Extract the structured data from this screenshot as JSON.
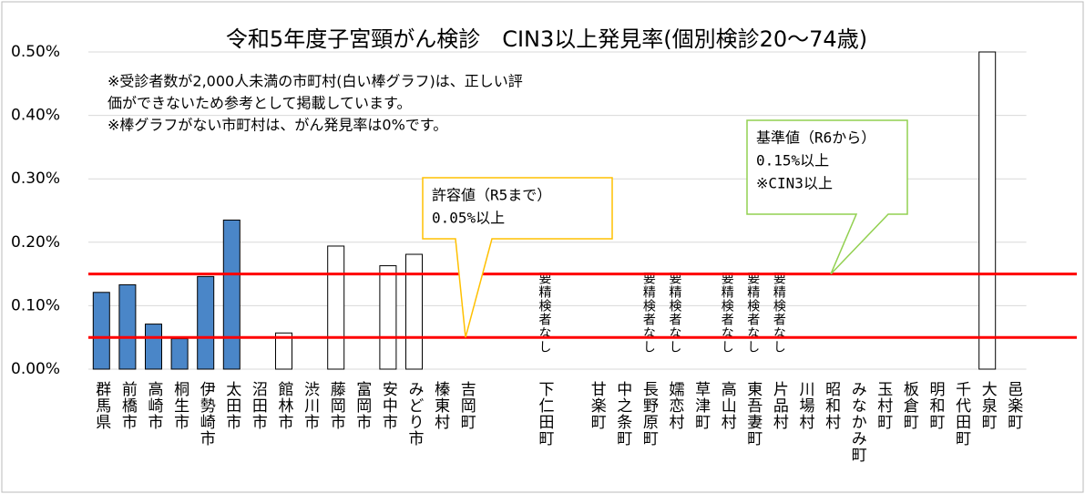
{
  "chart_data": {
    "type": "bar",
    "title": "令和5年度子宮頸がん検診　CIN3以上発見率(個別検診20～74歳)",
    "notes": [
      "※受診者数が2,000人未満の市町村(白い棒グラフ)は、正しい評",
      "価ができないため参考として掲載しています。",
      "※棒グラフがない市町村は、がん発見率は0%です。"
    ],
    "categories": [
      "群馬県",
      "前橋市",
      "高崎市",
      "桐生市",
      "伊勢崎市",
      "太田市",
      "沼田市",
      "館林市",
      "渋川市",
      "藤岡市",
      "富岡市",
      "安中市",
      "みどり市",
      "榛東村",
      "吉岡町",
      null,
      null,
      "下仁田町",
      null,
      "甘楽町",
      "中之条町",
      "長野原町",
      "嬬恋村",
      "草津町",
      "高山村",
      "東吾妻町",
      "片品村",
      "川場村",
      "昭和村",
      "みなかみ町",
      "玉村町",
      "板倉町",
      "明和町",
      "千代田町",
      "大泉町",
      "邑楽町"
    ],
    "values": [
      0.121,
      0.133,
      0.071,
      0.048,
      0.146,
      0.235,
      0,
      0.057,
      0,
      0.194,
      0,
      0.163,
      0.181,
      0,
      0,
      0,
      0,
      0,
      0,
      0,
      0,
      0,
      0,
      0,
      0,
      0,
      0,
      0,
      0,
      0,
      0,
      0,
      0,
      0,
      0.5,
      0
    ],
    "colors": [
      "#4a86c8",
      "#4a86c8",
      "#4a86c8",
      "#4a86c8",
      "#4a86c8",
      "#4a86c8",
      "#4a86c8",
      "#ffffff",
      "#4a86c8",
      "#ffffff",
      "#4a86c8",
      "#ffffff",
      "#ffffff",
      "#ffffff",
      "#ffffff",
      "#ffffff",
      "#ffffff",
      "#ffffff",
      "#ffffff",
      "#ffffff",
      "#ffffff",
      "#ffffff",
      "#ffffff",
      "#ffffff",
      "#ffffff",
      "#ffffff",
      "#ffffff",
      "#ffffff",
      "#ffffff",
      "#ffffff",
      "#ffffff",
      "#ffffff",
      "#ffffff",
      "#ffffff",
      "#ffffff",
      "#ffffff"
    ],
    "ylim": [
      0,
      0.5
    ],
    "yticks": [
      {
        "value": 0,
        "label": "0.00%"
      },
      {
        "value": 0.1,
        "label": "0.10%"
      },
      {
        "value": 0.2,
        "label": "0.20%"
      },
      {
        "value": 0.3,
        "label": "0.30%"
      },
      {
        "value": 0.4,
        "label": "0.40%"
      },
      {
        "value": 0.5,
        "label": "0.50%"
      }
    ],
    "grid": true,
    "reference_lines": [
      {
        "value": 0.05,
        "color": "#ff0000",
        "label": [
          "許容値（R5まで）",
          "0.05%以上"
        ],
        "box_color": "#ffc000"
      },
      {
        "value": 0.15,
        "color": "#ff0000",
        "label": [
          "基準値（R6から）",
          "0.15%以上",
          "※CIN3以上"
        ],
        "box_color": "#92d050"
      }
    ],
    "annotations": [
      {
        "category": "下仁田町",
        "text": "要精検者なし"
      },
      {
        "category": "長野原町",
        "text": "要精検者なし"
      },
      {
        "category": "嬬恋村",
        "text": "要精検者なし"
      },
      {
        "category": "高山村",
        "text": "要精検者なし"
      },
      {
        "category": "東吾妻町",
        "text": "要精検者なし"
      },
      {
        "category": "片品村",
        "text": "要精検者なし"
      }
    ]
  }
}
